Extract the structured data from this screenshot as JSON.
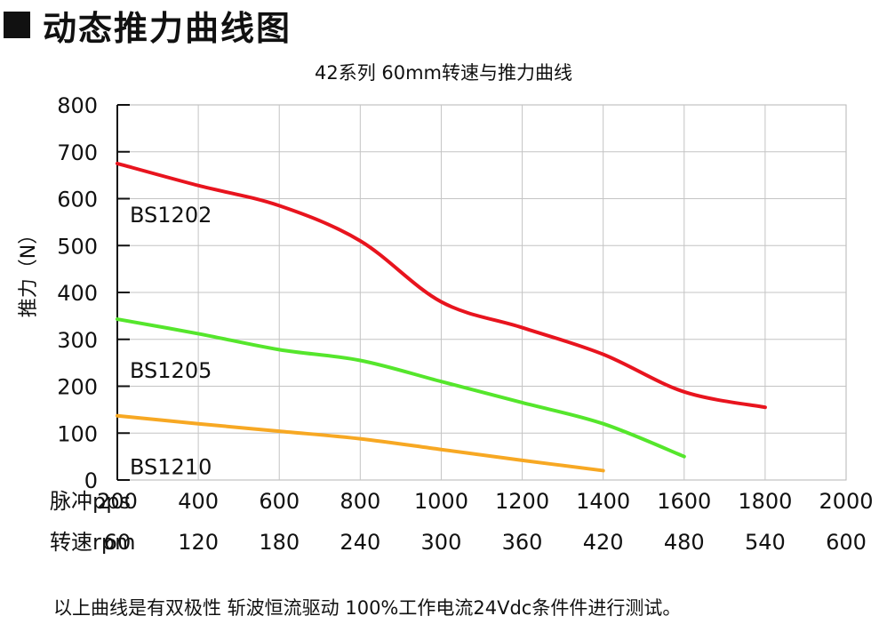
{
  "header": {
    "title": "动态推力曲线图"
  },
  "chart_data": {
    "type": "line",
    "title": "42系列 60mm转速与推力曲线",
    "ylabel": "推力（N）",
    "ylim": [
      0,
      800
    ],
    "yticks": [
      0,
      100,
      200,
      300,
      400,
      500,
      600,
      700,
      800
    ],
    "xlim": [
      200,
      2000
    ],
    "x_rows": [
      {
        "label": "脉冲pps",
        "ticks": [
          "200",
          "400",
          "600",
          "800",
          "1000",
          "1200",
          "1400",
          "1600",
          "1800",
          "2000"
        ]
      },
      {
        "label": "转速rpm",
        "ticks": [
          "60",
          "120",
          "180",
          "240",
          "300",
          "360",
          "420",
          "480",
          "540",
          "600"
        ]
      }
    ],
    "grid": true,
    "series": [
      {
        "name": "BS1202",
        "color": "#e8141e",
        "x": [
          200,
          400,
          600,
          800,
          1000,
          1200,
          1400,
          1600,
          1800
        ],
        "y": [
          675,
          628,
          585,
          510,
          380,
          325,
          268,
          188,
          155
        ]
      },
      {
        "name": "BS1205",
        "color": "#55e62c",
        "x": [
          200,
          400,
          600,
          800,
          1000,
          1200,
          1400,
          1600
        ],
        "y": [
          343,
          312,
          278,
          255,
          210,
          165,
          120,
          50
        ]
      },
      {
        "name": "BS1210",
        "color": "#f7a823",
        "x": [
          200,
          400,
          600,
          800,
          1000,
          1200,
          1400
        ],
        "y": [
          137,
          120,
          104,
          88,
          65,
          42,
          20
        ]
      }
    ]
  },
  "footnote": "以上曲线是有双极性 斩波恒流驱动 100%工作电流24Vdc条件件进行测试。"
}
